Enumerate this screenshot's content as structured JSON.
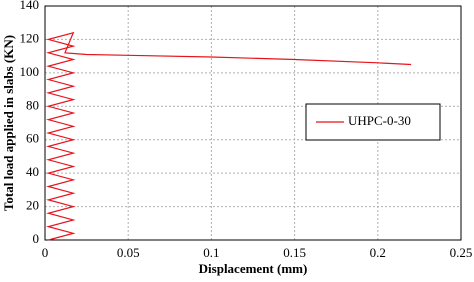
{
  "chart_data": {
    "type": "line",
    "x_label": "Displacement  (mm)",
    "y_label": "Total load applied in slabs (KN)",
    "x": [
      0.002,
      0.017,
      0.002,
      0.017,
      0.002,
      0.017,
      0.002,
      0.017,
      0.002,
      0.017,
      0.002,
      0.017,
      0.002,
      0.017,
      0.002,
      0.017,
      0.002,
      0.017,
      0.002,
      0.017,
      0.002,
      0.017,
      0.002,
      0.017,
      0.002,
      0.017,
      0.002,
      0.017,
      0.002,
      0.017,
      0.002,
      0.017,
      0.012,
      0.025,
      0.05,
      0.1,
      0.15,
      0.2,
      0.22
    ],
    "series": [
      {
        "name": "UHPC-0-30",
        "color": "#e8141b",
        "values": [
          0,
          4,
          8,
          12,
          16,
          20,
          24,
          28,
          32,
          36,
          40,
          44,
          48,
          52,
          56,
          60,
          64,
          68,
          72,
          76,
          80,
          84,
          88,
          92,
          96,
          100,
          104,
          108,
          112,
          116,
          120,
          124,
          112,
          111,
          110.5,
          109.5,
          108,
          106,
          105
        ]
      }
    ],
    "xlim": [
      0,
      0.25
    ],
    "xticks": [
      0,
      0.05,
      0.1,
      0.15,
      0.2,
      0.25
    ],
    "ylim": [
      0,
      140
    ],
    "yticks": [
      0,
      20,
      40,
      60,
      80,
      100,
      120,
      140
    ],
    "grid": true,
    "legend_position": "center right"
  }
}
